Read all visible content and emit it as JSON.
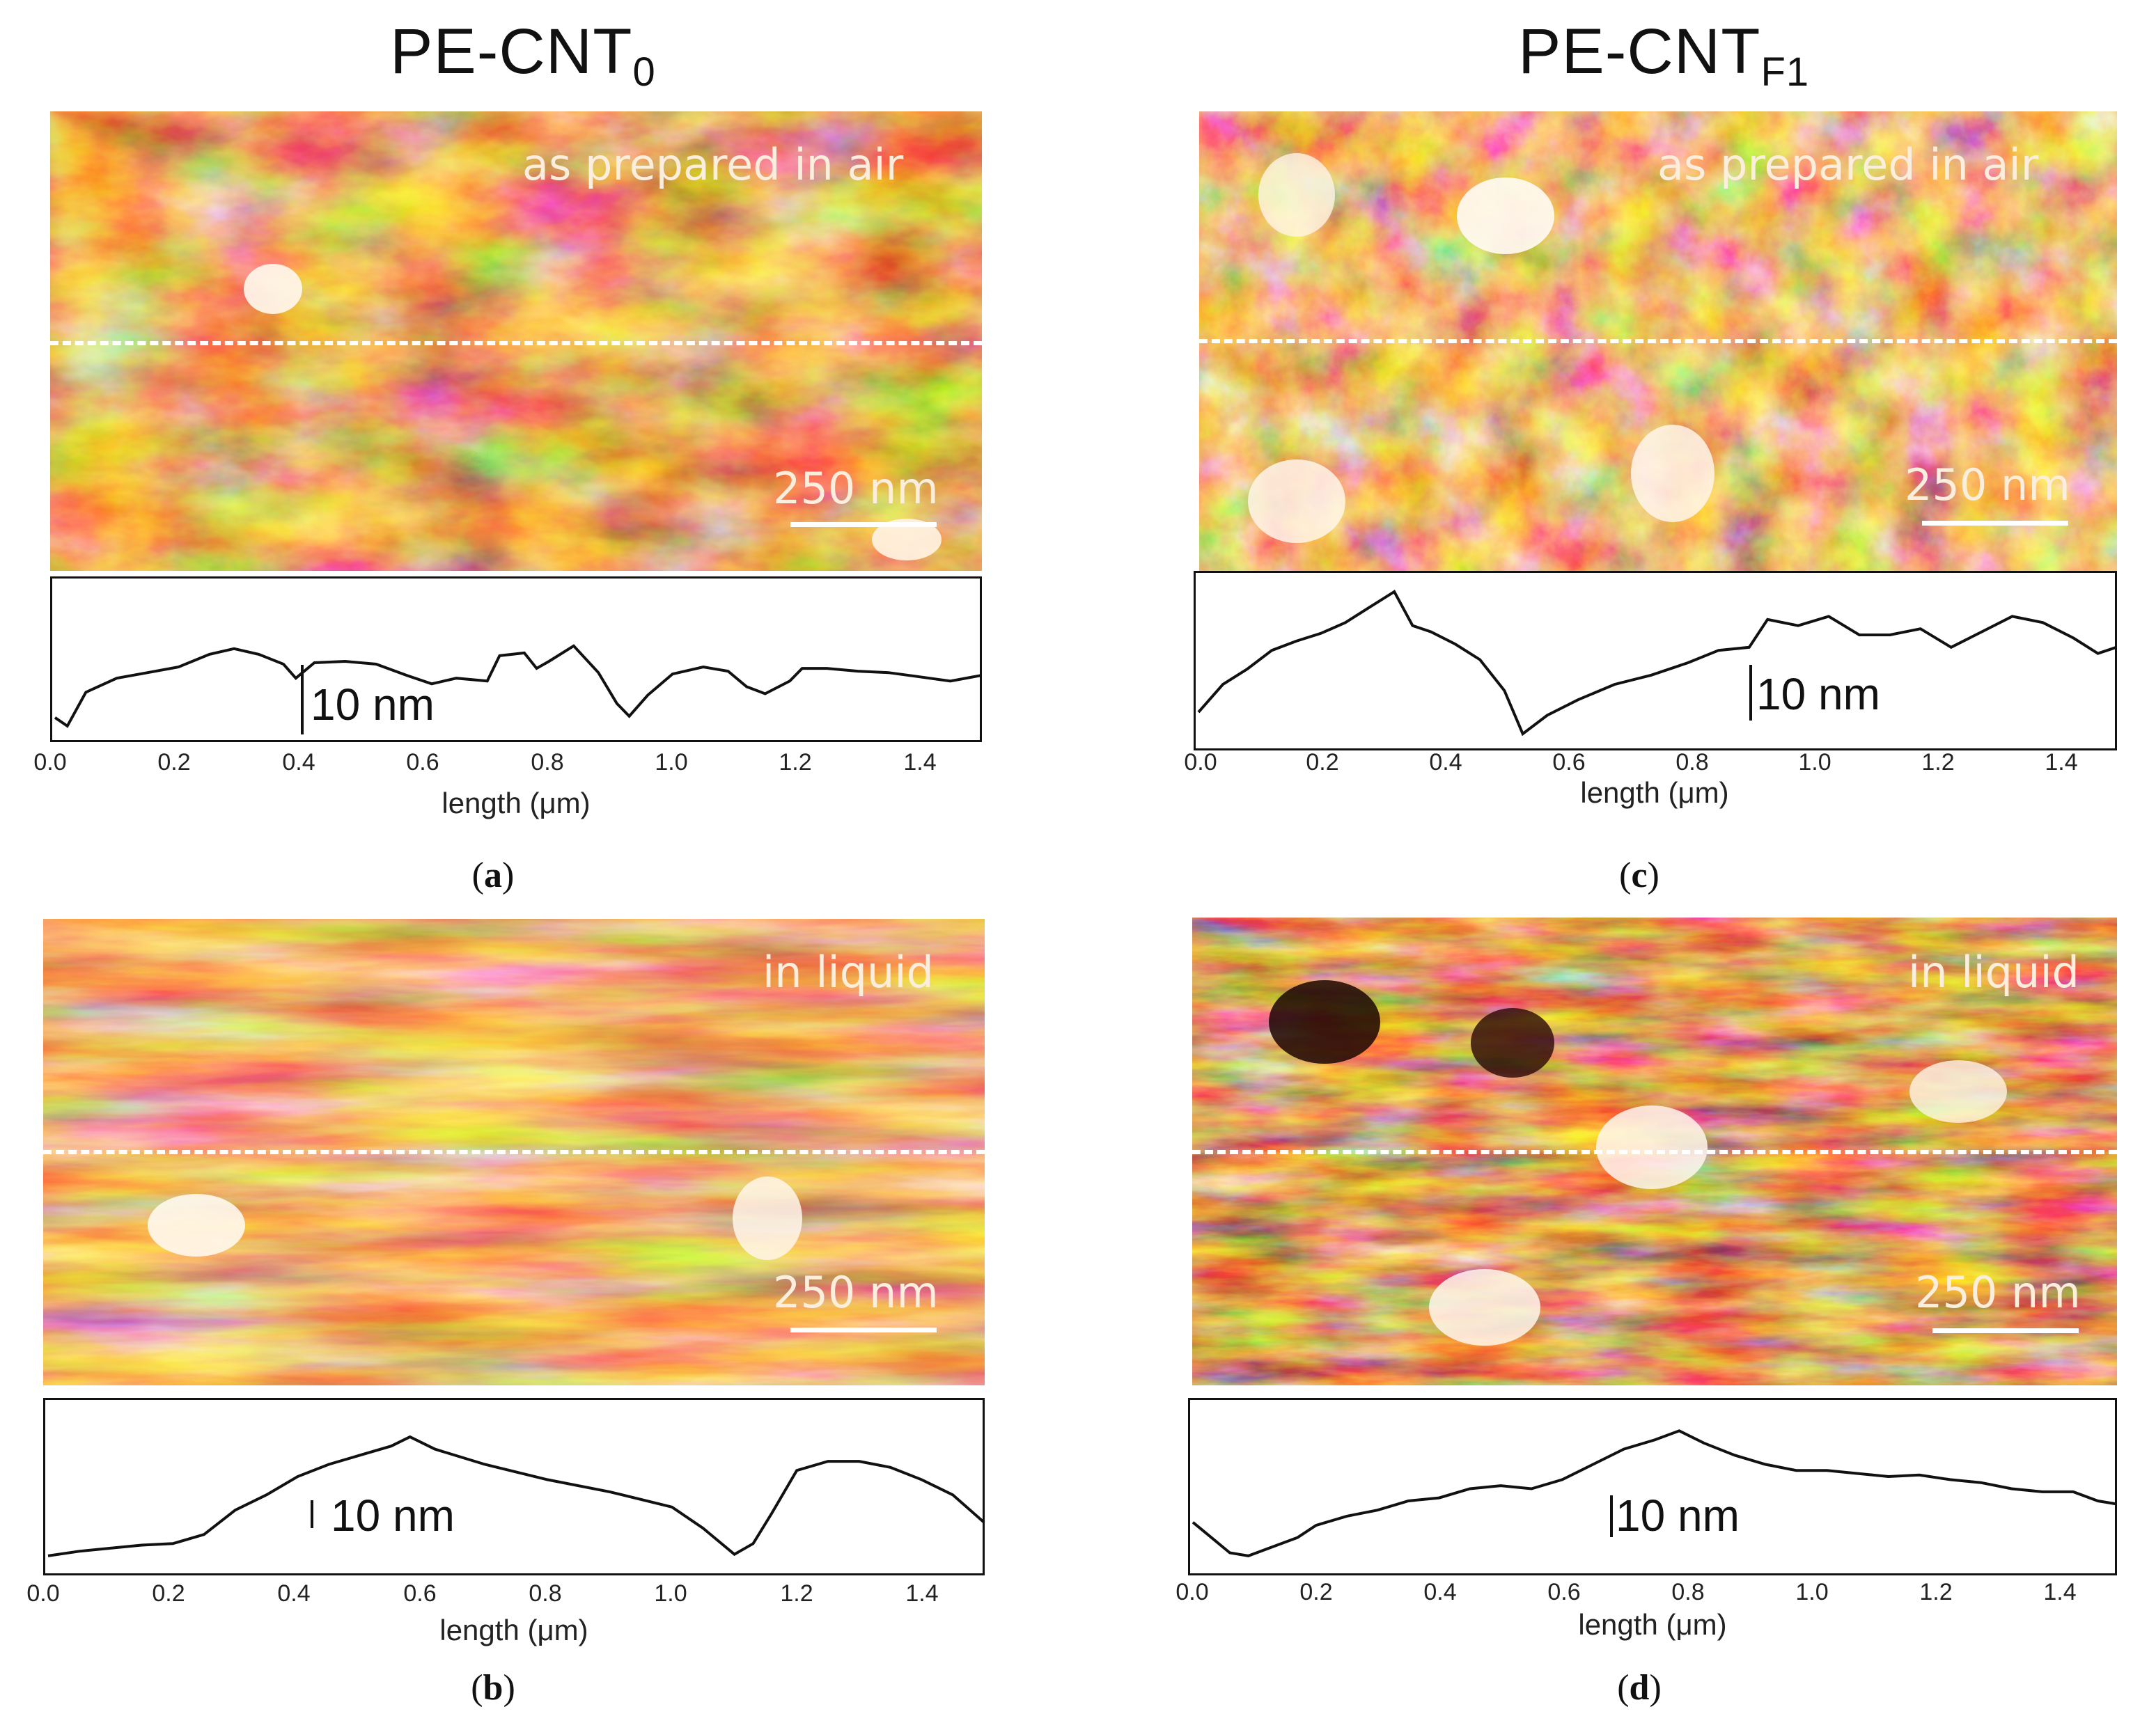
{
  "columns": {
    "left": {
      "base": "PE-CNT",
      "sub": "0"
    },
    "right": {
      "base": "PE-CNT",
      "sub": "F1"
    }
  },
  "colors": {
    "afm_dark": "#2a0a06",
    "afm_mid": "#a8401a",
    "afm_orange": "#e08a2a",
    "afm_light": "#fff6e8",
    "profile_line": "#111111",
    "dash_line": "#ffffff"
  },
  "panels": [
    {
      "id": "a",
      "condition": "as prepared  in air",
      "scale": "250 nm",
      "vertical_scale": "10 nm",
      "letter": "a"
    },
    {
      "id": "b",
      "condition": "in liquid",
      "scale": "250 nm",
      "vertical_scale": "10 nm",
      "letter": "b"
    },
    {
      "id": "c",
      "condition": "as prepared  in air",
      "scale": "250 nm",
      "vertical_scale": "10 nm",
      "letter": "c"
    },
    {
      "id": "d",
      "condition": "in liquid",
      "scale": "250 nm",
      "vertical_scale": "10 nm",
      "letter": "d"
    }
  ],
  "chart_data": [
    {
      "panel": "a",
      "type": "line",
      "xlabel": "length (μm)",
      "ylabel": "",
      "xlim": [
        0.0,
        1.5
      ],
      "ylim": [
        0,
        10
      ],
      "xticks": [
        "0.0",
        "0.2",
        "0.4",
        "0.6",
        "0.8",
        "1.0",
        "1.2",
        "1.4"
      ],
      "x": [
        0.0,
        0.02,
        0.05,
        0.1,
        0.15,
        0.2,
        0.25,
        0.29,
        0.33,
        0.37,
        0.39,
        0.42,
        0.47,
        0.52,
        0.57,
        0.61,
        0.65,
        0.7,
        0.72,
        0.76,
        0.78,
        0.8,
        0.84,
        0.88,
        0.91,
        0.93,
        0.96,
        1.0,
        1.05,
        1.09,
        1.12,
        1.15,
        1.19,
        1.21,
        1.25,
        1.3,
        1.35,
        1.4,
        1.45,
        1.5
      ],
      "y": [
        1.0,
        0.4,
        2.8,
        3.8,
        4.2,
        4.6,
        5.5,
        5.9,
        5.5,
        4.8,
        3.8,
        4.9,
        5.0,
        4.8,
        4.0,
        3.4,
        3.8,
        3.6,
        5.4,
        5.6,
        4.5,
        5.0,
        6.1,
        4.2,
        2.0,
        1.1,
        2.6,
        4.1,
        4.6,
        4.3,
        3.2,
        2.7,
        3.6,
        4.5,
        4.5,
        4.3,
        4.2,
        3.9,
        3.6,
        4.0
      ]
    },
    {
      "panel": "b",
      "type": "line",
      "xlabel": "length (μm)",
      "ylabel": "",
      "xlim": [
        0.0,
        1.5
      ],
      "ylim": [
        0,
        10
      ],
      "xticks": [
        "0.0",
        "0.2",
        "0.4",
        "0.6",
        "0.8",
        "1.0",
        "1.2",
        "1.4"
      ],
      "x": [
        0.0,
        0.05,
        0.1,
        0.15,
        0.2,
        0.25,
        0.3,
        0.35,
        0.4,
        0.45,
        0.5,
        0.55,
        0.58,
        0.62,
        0.7,
        0.8,
        0.9,
        1.0,
        1.05,
        1.1,
        1.13,
        1.16,
        1.2,
        1.25,
        1.3,
        1.35,
        1.4,
        1.45,
        1.5
      ],
      "y": [
        0.6,
        0.9,
        1.1,
        1.3,
        1.4,
        2.0,
        3.6,
        4.6,
        5.8,
        6.6,
        7.2,
        7.8,
        8.4,
        7.6,
        6.6,
        5.6,
        4.8,
        3.8,
        2.4,
        0.7,
        1.4,
        3.4,
        6.2,
        6.8,
        6.8,
        6.4,
        5.6,
        4.6,
        2.8
      ]
    },
    {
      "panel": "c",
      "type": "line",
      "xlabel": "length (μm)",
      "ylabel": "",
      "xlim": [
        0.0,
        1.5
      ],
      "ylim": [
        0,
        10
      ],
      "xticks": [
        "0.0",
        "0.2",
        "0.4",
        "0.6",
        "0.8",
        "1.0",
        "1.2",
        "1.4"
      ],
      "x": [
        0.0,
        0.04,
        0.08,
        0.12,
        0.16,
        0.2,
        0.24,
        0.28,
        0.32,
        0.35,
        0.38,
        0.42,
        0.46,
        0.5,
        0.53,
        0.57,
        0.62,
        0.68,
        0.74,
        0.8,
        0.85,
        0.9,
        0.93,
        0.98,
        1.03,
        1.08,
        1.13,
        1.18,
        1.23,
        1.28,
        1.33,
        1.38,
        1.43,
        1.47,
        1.5
      ],
      "y": [
        1.8,
        3.6,
        4.6,
        5.8,
        6.4,
        6.9,
        7.6,
        8.6,
        9.6,
        7.4,
        7.0,
        6.2,
        5.2,
        3.2,
        0.4,
        1.6,
        2.6,
        3.6,
        4.2,
        5.0,
        5.8,
        6.0,
        7.8,
        7.4,
        8.0,
        6.8,
        6.8,
        7.2,
        6.0,
        7.0,
        8.0,
        7.6,
        6.6,
        5.6,
        6.0
      ]
    },
    {
      "panel": "d",
      "type": "line",
      "xlabel": "length (μm)",
      "ylabel": "",
      "xlim": [
        0.0,
        1.5
      ],
      "ylim": [
        0,
        10
      ],
      "xticks": [
        "0.0",
        "0.2",
        "0.4",
        "0.6",
        "0.8",
        "1.0",
        "1.2",
        "1.4"
      ],
      "x": [
        0.0,
        0.03,
        0.06,
        0.09,
        0.13,
        0.17,
        0.2,
        0.25,
        0.3,
        0.35,
        0.4,
        0.45,
        0.5,
        0.55,
        0.6,
        0.65,
        0.7,
        0.75,
        0.79,
        0.83,
        0.88,
        0.93,
        0.98,
        1.03,
        1.08,
        1.13,
        1.18,
        1.23,
        1.28,
        1.33,
        1.38,
        1.43,
        1.47,
        1.5
      ],
      "y": [
        2.8,
        1.8,
        0.8,
        0.6,
        1.2,
        1.8,
        2.6,
        3.2,
        3.6,
        4.2,
        4.4,
        5.0,
        5.2,
        5.0,
        5.6,
        6.6,
        7.6,
        8.2,
        8.8,
        8.0,
        7.2,
        6.6,
        6.2,
        6.2,
        6.0,
        5.8,
        5.9,
        5.6,
        5.4,
        5.0,
        4.8,
        4.8,
        4.2,
        4.0
      ]
    }
  ]
}
